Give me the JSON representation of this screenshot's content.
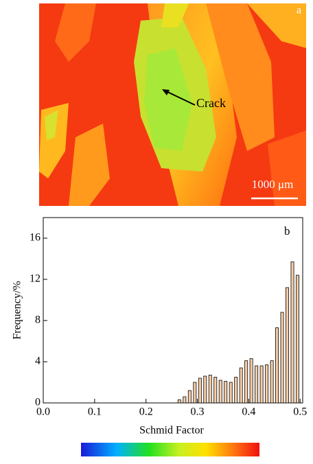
{
  "image_panel": {
    "label": "a",
    "annotation": "Crack",
    "scale_bar": "1000 μm"
  },
  "chart_data": {
    "type": "histogram",
    "panel_label": "b",
    "x_label": "Schmid Factor",
    "y_label": "Frequency/%",
    "bins": [
      0.26,
      0.27,
      0.28,
      0.29,
      0.3,
      0.31,
      0.32,
      0.33,
      0.34,
      0.35,
      0.36,
      0.37,
      0.38,
      0.39,
      0.4,
      0.41,
      0.42,
      0.43,
      0.44,
      0.45,
      0.46,
      0.47,
      0.48,
      0.49,
      0.5
    ],
    "values": [
      0.3,
      0.6,
      1.2,
      2.0,
      2.4,
      2.6,
      2.7,
      2.5,
      2.2,
      2.1,
      2.0,
      2.5,
      3.4,
      4.1,
      4.3,
      3.6,
      3.6,
      3.7,
      4.1,
      7.3,
      8.8,
      11.2,
      13.7,
      12.4
    ],
    "color": "#f7cda6",
    "xlim": [
      0,
      0.505
    ],
    "ylim": [
      0,
      18
    ],
    "xticks": [
      {
        "value": 0,
        "label": "0.0"
      },
      0.1,
      0.2,
      0.3,
      0.4,
      0.5
    ],
    "yticks": [
      0,
      4,
      8,
      12,
      16
    ]
  }
}
